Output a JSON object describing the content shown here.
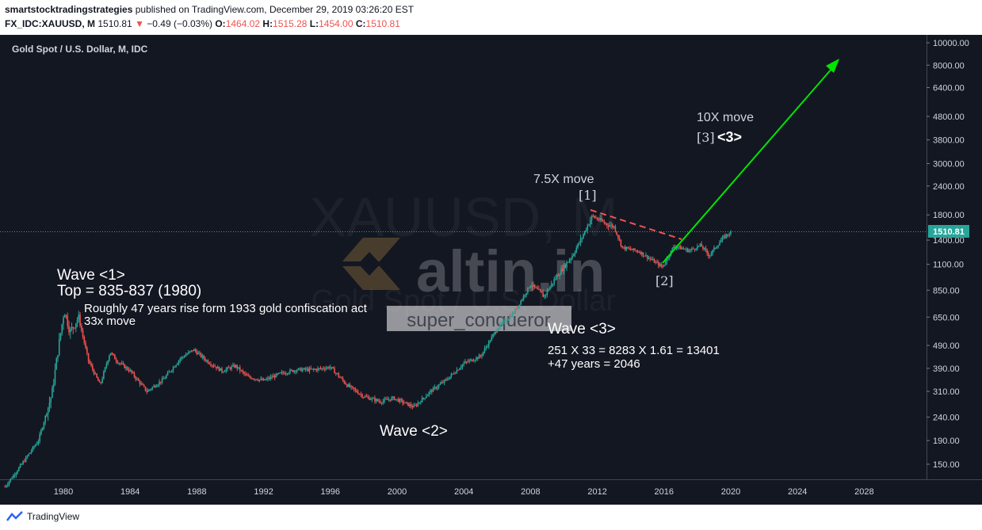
{
  "header": {
    "author": "smartstocktradingstrategies",
    "published": " published on TradingView.com, December 29, 2019 03:26:20 EST",
    "symbol": "FX_IDC:XAUUSD, M",
    "last": " 1510.81 ",
    "change_icon": "triangle-down",
    "change": " −0.49 (−0.03%) ",
    "o_label": "O:",
    "o_val": "1464.02 ",
    "h_label": "H:",
    "h_val": "1515.28 ",
    "l_label": "L:",
    "l_val": "1454.00 ",
    "c_label": "C:",
    "c_val": "1510.81"
  },
  "footer": {
    "logo_text": "TradingView"
  },
  "colors": {
    "background": "#131722",
    "up": "#26a69a",
    "down": "#ef5350",
    "trend": "#00e600",
    "price_label": "#26a69a"
  },
  "chart_data": {
    "type": "candlestick",
    "title": "Gold Spot / U.S. Dollar, M, IDC",
    "watermark_symbol": "XAUUSD, M",
    "watermark_name": "Gold Spot / U.S. Dollar",
    "watermark_brand": "altin.in",
    "watermark_user": "super_conqueror",
    "y_scale": "log",
    "y_ticks": [
      "10000.00",
      "8000.00",
      "6400.00",
      "4800.00",
      "3800.00",
      "3000.00",
      "2400.00",
      "1800.00",
      "1400.00",
      "1100.00",
      "850.00",
      "650.00",
      "490.00",
      "390.00",
      "310.00",
      "240.00",
      "190.00",
      "150.00"
    ],
    "x_ticks": [
      "1980",
      "1984",
      "1988",
      "1992",
      "1996",
      "2000",
      "2004",
      "2008",
      "2012",
      "2016",
      "2020",
      "2024",
      "2028"
    ],
    "last_price": "1510.81",
    "anchors": [
      [
        1976.5,
        120
      ],
      [
        1977.5,
        150
      ],
      [
        1978.5,
        190
      ],
      [
        1979.3,
        300
      ],
      [
        1979.7,
        480
      ],
      [
        1980.05,
        700
      ],
      [
        1980.4,
        560
      ],
      [
        1980.9,
        650
      ],
      [
        1981.5,
        420
      ],
      [
        1982.2,
        330
      ],
      [
        1982.8,
        460
      ],
      [
        1983.2,
        420
      ],
      [
        1984.0,
        380
      ],
      [
        1985.0,
        310
      ],
      [
        1986.0,
        350
      ],
      [
        1987.0,
        430
      ],
      [
        1987.8,
        470
      ],
      [
        1988.6,
        420
      ],
      [
        1989.5,
        380
      ],
      [
        1990.3,
        400
      ],
      [
        1991.0,
        360
      ],
      [
        1992.0,
        345
      ],
      [
        1993.0,
        370
      ],
      [
        1994.0,
        385
      ],
      [
        1995.0,
        385
      ],
      [
        1996.0,
        395
      ],
      [
        1997.0,
        330
      ],
      [
        1998.0,
        295
      ],
      [
        1999.0,
        280
      ],
      [
        1999.8,
        290
      ],
      [
        2001.0,
        265
      ],
      [
        2002.0,
        310
      ],
      [
        2003.0,
        350
      ],
      [
        2004.0,
        410
      ],
      [
        2005.0,
        440
      ],
      [
        2006.0,
        580
      ],
      [
        2007.0,
        680
      ],
      [
        2008.0,
        900
      ],
      [
        2008.8,
        800
      ],
      [
        2009.5,
        960
      ],
      [
        2010.5,
        1200
      ],
      [
        2011.0,
        1400
      ],
      [
        2011.7,
        1780
      ],
      [
        2012.5,
        1650
      ],
      [
        2013.0,
        1600
      ],
      [
        2013.5,
        1300
      ],
      [
        2014.5,
        1250
      ],
      [
        2015.9,
        1070
      ],
      [
        2016.6,
        1320
      ],
      [
        2017.5,
        1260
      ],
      [
        2018.2,
        1330
      ],
      [
        2018.7,
        1200
      ],
      [
        2019.5,
        1420
      ],
      [
        2019.96,
        1510.81
      ]
    ],
    "annotations": {
      "wave1": "Wave <1>",
      "top": "Top = 835-837 (1980)",
      "roughly": "Roughly 47 years rise form 1933 gold confiscation act",
      "move33": "33x move",
      "wave2": "Wave <2>",
      "wave3": "Wave <3>",
      "calc1": "251 X 33 = 8283 X 1.61 = 13401",
      "calc2": "+47 years = 2046",
      "move75": "7.5X move",
      "label1": "[1]",
      "label2": "[2]",
      "move10": "10X move",
      "label3a": "[3]",
      "label3b": "<3>"
    }
  }
}
